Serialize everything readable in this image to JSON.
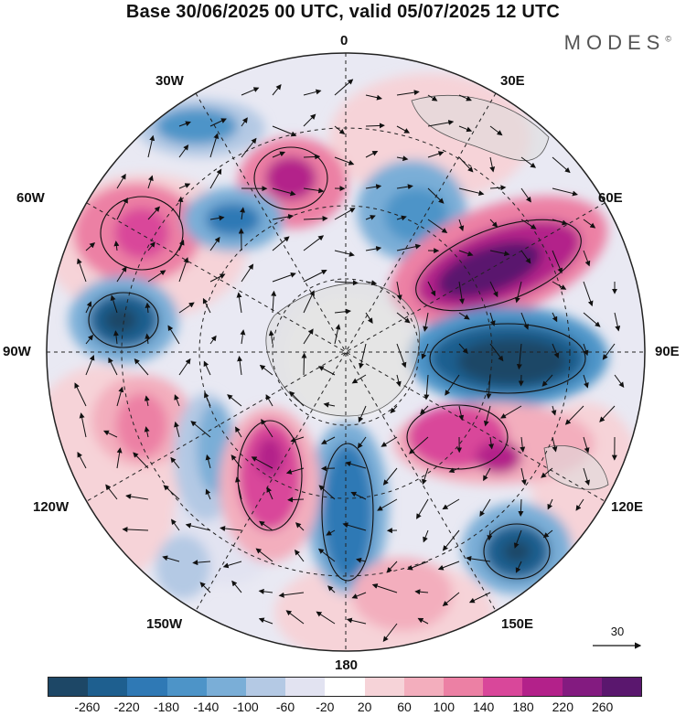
{
  "title": "Base 30/06/2025 00 UTC, valid 05/07/2025 12 UTC",
  "brand": "MODES",
  "brand_mark": "©",
  "longitude_labels": {
    "top": "0",
    "e30": "30E",
    "e60": "60E",
    "e90": "90E",
    "e120": "120E",
    "e150": "150E",
    "bottom": "180",
    "w150": "150W",
    "w120": "120W",
    "w90": "90W",
    "w60": "60W",
    "w30": "30W"
  },
  "reference_vector": "30",
  "colorbar": {
    "ticks": [
      "-260",
      "-220",
      "-180",
      "-140",
      "-100",
      "-60",
      "-20",
      "20",
      "60",
      "100",
      "140",
      "180",
      "220",
      "260"
    ],
    "colors": [
      "#1d4766",
      "#1e5f8f",
      "#2f79b5",
      "#4d94c8",
      "#7aaed7",
      "#b4c9e4",
      "#e2e3f1",
      "#ffffff",
      "#f6d3d8",
      "#f3aebd",
      "#ec80a4",
      "#d9479a",
      "#b3218a",
      "#831b80",
      "#5a176e"
    ]
  },
  "anomalies": [
    {
      "value": -240,
      "color": "#1d4766"
    },
    {
      "value": -200,
      "color": "#1e5f8f"
    },
    {
      "value": 240,
      "color": "#5a176e"
    },
    {
      "value": 180,
      "color": "#b3218a"
    }
  ]
}
